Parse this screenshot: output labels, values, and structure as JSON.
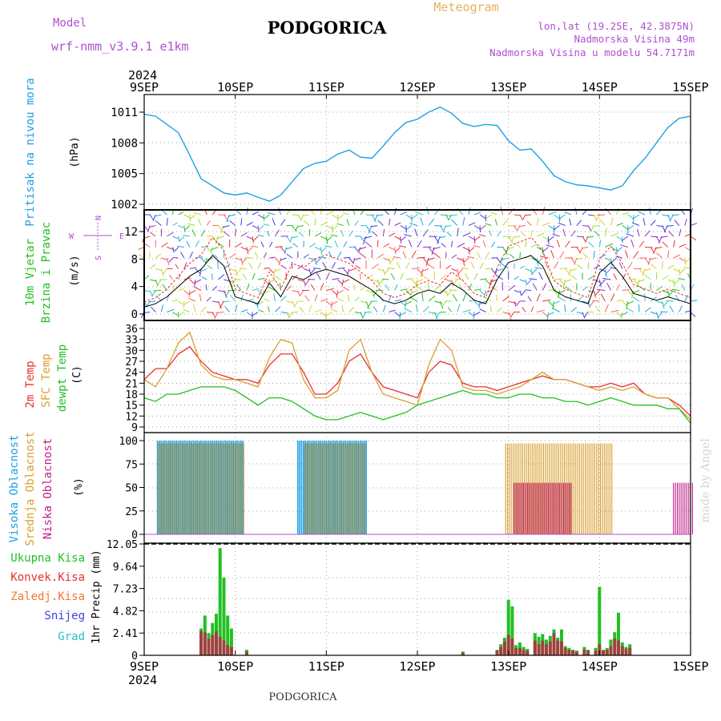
{
  "header": {
    "model_label": "Model",
    "model_name": "wrf-nmm_v3.9.1 e1km",
    "title": "PODGORICA",
    "meteogram_label": "Meteogram",
    "coords": "lon,lat (19.25E, 42.3875N)",
    "elevation": "Nadmorska Visina 49m",
    "model_elevation": "Nadmorska Visina u modelu 54.7171m",
    "watermark": "made by Angel",
    "footer": "PODGORICA"
  },
  "colors": {
    "pressure": "#1ea0e6",
    "temp2m": "#e83030",
    "sfc": "#d9a030",
    "dewpt": "#22c022",
    "high_cloud": "#1ea0e6",
    "mid_cloud": "#d9a030",
    "low_cloud": "#c0208a",
    "precip_total": "#22c022",
    "precip_conv": "#a04040",
    "label_purple": "#b050d0",
    "label_orange": "#e8b060"
  },
  "chart_data": [
    {
      "type": "line",
      "panel": "pressure",
      "title": "",
      "ylabel_left": "Pritisak na nivou mora",
      "unit": "(hPa)",
      "x_year": "2024",
      "x_ticks": [
        "9SEP",
        "10SEP",
        "11SEP",
        "12SEP",
        "13SEP",
        "14SEP",
        "15SEP"
      ],
      "y_ticks": [
        "1011",
        "1008",
        "1005",
        "1002"
      ],
      "ylim": [
        1002,
        1011.5
      ],
      "series": [
        {
          "color": "pressure",
          "x_hours": [
            0,
            3,
            6,
            9,
            12,
            15,
            18,
            21,
            24,
            27,
            30,
            33,
            36,
            39,
            42,
            45,
            48,
            51,
            54,
            57,
            60,
            63,
            66,
            69,
            72,
            75,
            78,
            81,
            84,
            87,
            90,
            93,
            96,
            99,
            102,
            105,
            108,
            111,
            114,
            117,
            120,
            123,
            126,
            129,
            132,
            135,
            138,
            141,
            144
          ],
          "values": [
            1010.8,
            1010.6,
            1009.8,
            1009.0,
            1006.8,
            1004.5,
            1003.8,
            1003.1,
            1002.9,
            1003.1,
            1002.7,
            1002.3,
            1002.9,
            1004.2,
            1005.5,
            1006.0,
            1006.2,
            1006.9,
            1007.3,
            1006.6,
            1006.5,
            1007.7,
            1009.0,
            1010.0,
            1010.3,
            1011.0,
            1011.5,
            1010.9,
            1009.9,
            1009.6,
            1009.8,
            1009.7,
            1008.2,
            1007.3,
            1007.4,
            1006.2,
            1004.8,
            1004.2,
            1003.9,
            1003.8,
            1003.6,
            1003.4,
            1003.8,
            1005.3,
            1006.5,
            1008.0,
            1009.5,
            1010.4,
            1010.6
          ]
        }
      ]
    },
    {
      "type": "line",
      "panel": "wind",
      "title": "",
      "ylabel_left": [
        "10m Vjetar",
        "Brzina i Pravac"
      ],
      "unit": "(m/s)",
      "compass_labels": [
        "N",
        "E",
        "S",
        "W"
      ],
      "y_ticks": [
        "12",
        "8",
        "4",
        "0"
      ],
      "ylim": [
        0,
        15.5
      ],
      "series": [
        {
          "name": "speed",
          "x_hours": [
            0,
            3,
            6,
            9,
            12,
            15,
            18,
            21,
            24,
            27,
            30,
            33,
            36,
            39,
            42,
            45,
            48,
            51,
            54,
            57,
            60,
            63,
            66,
            69,
            72,
            75,
            78,
            81,
            84,
            87,
            90,
            93,
            96,
            99,
            102,
            105,
            108,
            111,
            114,
            117,
            120,
            123,
            126,
            129,
            132,
            135,
            138,
            141,
            144
          ],
          "values": [
            1.0,
            1.5,
            2.5,
            4.0,
            5.5,
            6.5,
            8.5,
            7.0,
            2.5,
            2.0,
            1.5,
            4.5,
            2.5,
            5.5,
            5.0,
            6.0,
            6.5,
            6.0,
            5.5,
            4.5,
            3.5,
            2.0,
            1.5,
            2.0,
            3.0,
            3.5,
            3.0,
            4.5,
            3.5,
            2.0,
            1.5,
            5.0,
            7.5,
            8.0,
            8.5,
            7.0,
            3.5,
            2.5,
            2.0,
            1.5,
            6.0,
            7.5,
            5.5,
            3.0,
            2.5,
            2.0,
            2.5,
            2.0,
            1.5
          ]
        }
      ]
    },
    {
      "type": "line",
      "panel": "temperature",
      "title": "",
      "ylabel_left": [
        "2m Temp",
        "SFC Temp",
        "dewpt Temp"
      ],
      "unit": "(C)",
      "y_ticks": [
        "36",
        "33",
        "30",
        "27",
        "24",
        "21",
        "18",
        "15",
        "12",
        "9"
      ],
      "ylim": [
        9,
        36
      ],
      "x_hours": [
        0,
        3,
        6,
        9,
        12,
        15,
        18,
        21,
        24,
        27,
        30,
        33,
        36,
        39,
        42,
        45,
        48,
        51,
        54,
        57,
        60,
        63,
        66,
        69,
        72,
        75,
        78,
        81,
        84,
        87,
        90,
        93,
        96,
        99,
        102,
        105,
        108,
        111,
        114,
        117,
        120,
        123,
        126,
        129,
        132,
        135,
        138,
        141,
        144
      ],
      "series": [
        {
          "color": "temp2m",
          "values": [
            22,
            25,
            25,
            29,
            31,
            27,
            24,
            23,
            22,
            22,
            21,
            26,
            29,
            29,
            24,
            18,
            18,
            21,
            27,
            29,
            24,
            20,
            19,
            18,
            17,
            24,
            27,
            26,
            21,
            20,
            20,
            19,
            20,
            21,
            22,
            23,
            22,
            22,
            21,
            20,
            20,
            21,
            20,
            21,
            18,
            17,
            17,
            15,
            12
          ]
        },
        {
          "color": "sfc",
          "values": [
            22,
            20,
            25,
            32,
            35,
            26,
            23,
            22,
            22,
            21,
            20,
            28,
            33,
            32,
            22,
            17,
            17,
            19,
            30,
            33,
            24,
            18,
            17,
            16,
            15,
            26,
            33,
            30,
            20,
            19,
            19,
            18,
            19,
            20,
            22,
            24,
            22,
            22,
            21,
            20,
            19,
            20,
            19,
            20,
            18,
            17,
            17,
            14,
            11
          ]
        },
        {
          "color": "dewpt",
          "values": [
            17,
            16,
            18,
            18,
            19,
            20,
            20,
            20,
            19,
            17,
            15,
            17,
            17,
            16,
            14,
            12,
            11,
            11,
            12,
            13,
            12,
            11,
            12,
            13,
            15,
            16,
            17,
            18,
            19,
            18,
            18,
            17,
            17,
            18,
            18,
            17,
            17,
            16,
            16,
            15,
            16,
            17,
            16,
            15,
            15,
            15,
            14,
            14,
            10
          ]
        }
      ]
    },
    {
      "type": "bar",
      "panel": "clouds",
      "title": "",
      "ylabel_left": [
        "Visoka Oblacnost",
        "Srednja Oblacnost",
        "Niska Oblacnost"
      ],
      "unit": "(%)",
      "y_ticks": [
        "100",
        "75",
        "50",
        "25",
        "0"
      ],
      "ylim": [
        0,
        100
      ],
      "series": [
        {
          "color": "high_cloud",
          "segments_hours": [
            [
              3.5,
              26
            ],
            [
              40.5,
              58.5
            ]
          ],
          "value": 100
        },
        {
          "color": "mid_cloud",
          "segments_hours": [
            [
              3.5,
              26
            ],
            [
              42,
              58
            ],
            [
              95,
              123
            ]
          ],
          "value": 97
        },
        {
          "color": "low_cloud",
          "segments_hours": [
            [
              97,
              112
            ],
            [
              139,
              144
            ]
          ],
          "value": 55
        }
      ]
    },
    {
      "type": "bar",
      "panel": "precip",
      "title": "",
      "ylabel_left": [
        "Ukupna Kisa",
        "Konvek.Kisa",
        "Zaledj.Kisa",
        "Snijeg",
        "Grad"
      ],
      "ylabel_left_colors": [
        "#22c022",
        "#e83030",
        "#f07830",
        "#4040e0",
        "#30c0c0"
      ],
      "unit": "1hr Precip (mm)",
      "y_ticks": [
        "12.05",
        "9.64",
        "7.23",
        "4.82",
        "2.41",
        "0"
      ],
      "ylim": [
        0,
        12.05
      ],
      "x_ticks": [
        "9SEP",
        "10SEP",
        "11SEP",
        "12SEP",
        "13SEP",
        "14SEP",
        "15SEP"
      ],
      "x_year": "2024",
      "total": {
        "x_hours": [
          15,
          16,
          17,
          18,
          19,
          20,
          21,
          22,
          23,
          24,
          27,
          84,
          93,
          94,
          95,
          96,
          97,
          98,
          99,
          100,
          101,
          103,
          104,
          105,
          106,
          107,
          108,
          109,
          110,
          111,
          112,
          113,
          114,
          116,
          117,
          119,
          120,
          121,
          122,
          123,
          124,
          125,
          126,
          127,
          128
        ],
        "values": [
          2.9,
          4.3,
          2.4,
          3.5,
          4.5,
          11.6,
          8.4,
          4.3,
          2.9,
          0,
          0.6,
          0.4,
          0.6,
          1.2,
          1.9,
          6.0,
          5.3,
          1.1,
          1.4,
          0.9,
          0.7,
          2.4,
          2.0,
          2.3,
          1.7,
          2.1,
          2.8,
          1.9,
          2.8,
          1.0,
          0.8,
          0.6,
          0.5,
          0.9,
          0.6,
          0.8,
          7.4,
          0.6,
          0.8,
          1.7,
          2.5,
          4.6,
          1.4,
          0.9,
          1.2
        ]
      },
      "convective": {
        "x_hours": [
          15,
          16,
          17,
          18,
          19,
          20,
          21,
          22,
          23,
          27,
          84,
          93,
          94,
          95,
          96,
          97,
          98,
          99,
          100,
          101,
          103,
          104,
          105,
          106,
          107,
          108,
          109,
          110,
          111,
          112,
          113,
          114,
          116,
          117,
          119,
          120,
          121,
          122,
          123,
          124,
          125,
          126,
          127,
          128
        ],
        "values": [
          2.6,
          2.5,
          1.8,
          2.2,
          2.6,
          2.0,
          1.6,
          1.1,
          0.9,
          0.4,
          0.3,
          0.5,
          0.9,
          1.5,
          2.2,
          1.8,
          0.8,
          0.8,
          0.6,
          0.5,
          1.6,
          1.2,
          1.6,
          1.2,
          1.5,
          2.4,
          1.6,
          1.5,
          0.8,
          0.6,
          0.5,
          0.4,
          0.6,
          0.5,
          0.5,
          1.2,
          0.5,
          0.6,
          1.0,
          1.8,
          1.6,
          1.0,
          0.7,
          0.8
        ]
      }
    }
  ]
}
